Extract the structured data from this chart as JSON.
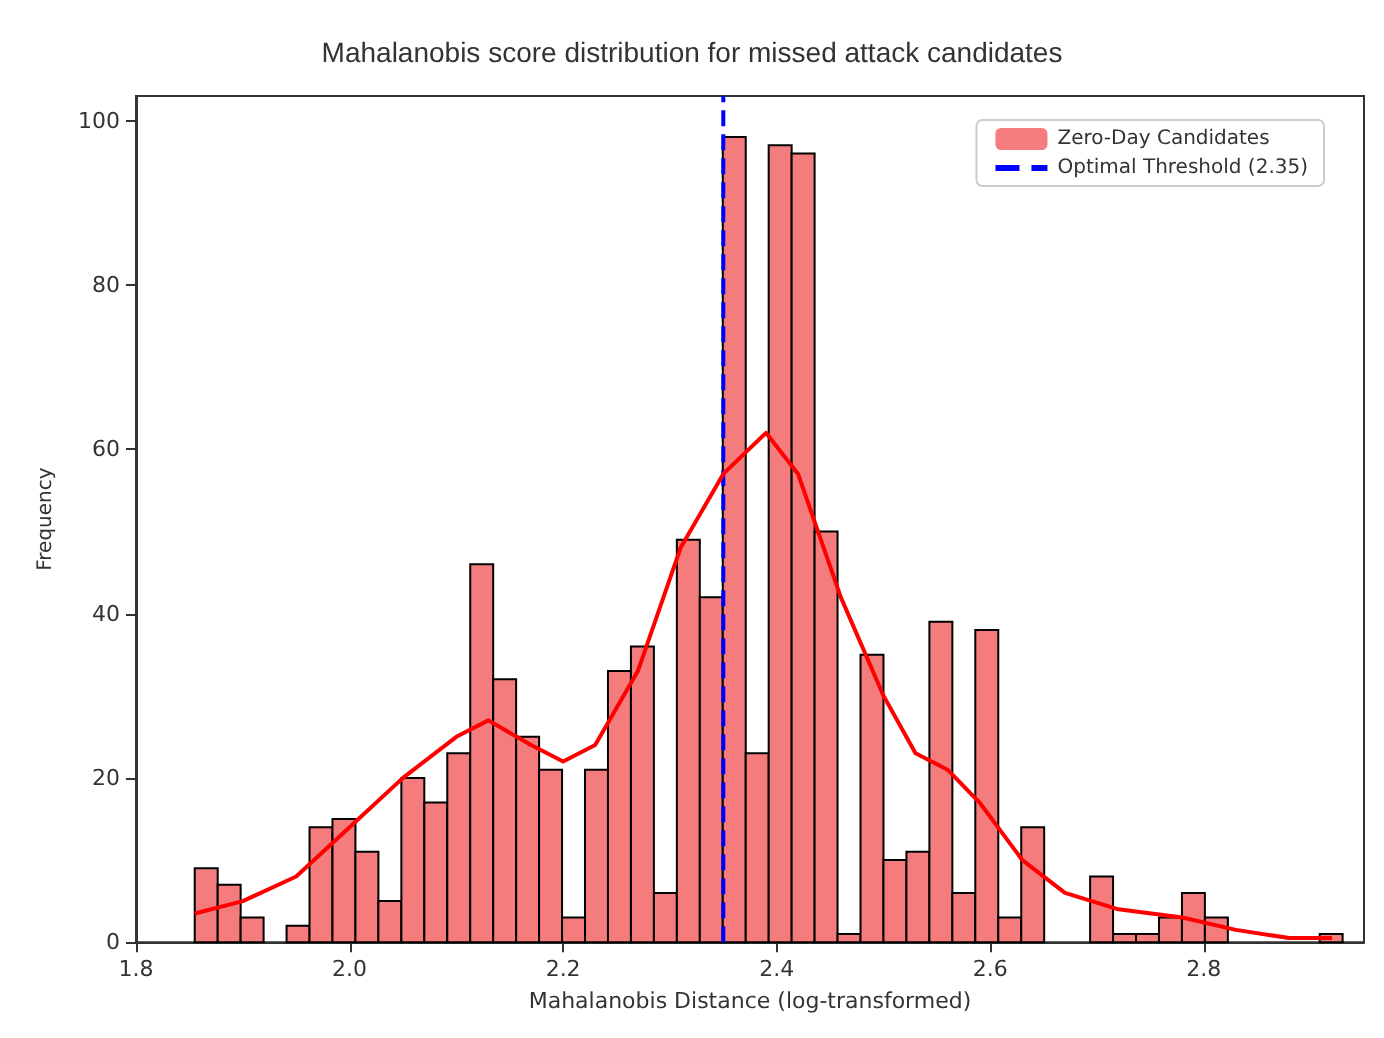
{
  "chart_data": {
    "type": "histogram",
    "title": "Mahalanobis score distribution for missed attack candidates",
    "xlabel": "Mahalanobis Distance (log-transformed)",
    "ylabel": "Frequency",
    "bins": [
      1.855,
      1.8765,
      1.898,
      1.9195,
      1.941,
      1.9625,
      1.984,
      2.0055,
      2.027,
      2.0485,
      2.07,
      2.0915,
      2.113,
      2.1345,
      2.156,
      2.1775,
      2.199,
      2.2205,
      2.242,
      2.2635,
      2.285,
      2.3065,
      2.328,
      2.3495,
      2.371,
      2.3925,
      2.414,
      2.4355,
      2.457,
      2.4785,
      2.5,
      2.5215,
      2.543,
      2.5645,
      2.586,
      2.6075,
      2.629,
      2.6505,
      2.672,
      2.6935,
      2.715,
      2.7365,
      2.758,
      2.7795,
      2.801,
      2.8225,
      2.844,
      2.8655,
      2.887,
      2.9085,
      2.93
    ],
    "series": [
      {
        "name": "Zero-Day Candidates",
        "color": "#f47c7c",
        "values": [
          9,
          7,
          3,
          0,
          2,
          14,
          15,
          11,
          5,
          20,
          17,
          23,
          46,
          32,
          25,
          21,
          3,
          21,
          33,
          36,
          6,
          49,
          42,
          98,
          23,
          97,
          96,
          50,
          1,
          35,
          10,
          11,
          39,
          6,
          38,
          3,
          14,
          0,
          0,
          8,
          1,
          1,
          3,
          6,
          3,
          0,
          0,
          0,
          0,
          1
        ]
      },
      {
        "name": "Optimal Threshold (2.35)",
        "type": "line",
        "color": "#0000ff",
        "line_style": "dashed",
        "x": [
          2.35,
          2.35
        ],
        "values": [
          0,
          103
        ]
      },
      {
        "type": "line",
        "color": "#ff0000",
        "x": [
          1.855,
          1.9,
          1.95,
          2.0,
          2.05,
          2.1,
          2.13,
          2.17,
          2.2,
          2.23,
          2.27,
          2.31,
          2.35,
          2.39,
          2.42,
          2.46,
          2.5,
          2.53,
          2.56,
          2.59,
          2.63,
          2.67,
          2.72,
          2.78,
          2.83,
          2.88,
          2.92
        ],
        "values": [
          3.5,
          5,
          8,
          14,
          20,
          25,
          27,
          24,
          22,
          24,
          33,
          48,
          57,
          62,
          57,
          42,
          30,
          23,
          21,
          17,
          10,
          6,
          4,
          3,
          1.5,
          0.5,
          0.5
        ]
      }
    ],
    "xlim": [
      1.8,
      2.95
    ],
    "xticks": [
      1.8,
      {
        "value": 2,
        "label": "2.0"
      },
      2.2,
      2.4,
      2.6,
      2.8
    ],
    "ylim": [
      0,
      103
    ],
    "yticks": [
      0,
      20,
      40,
      60,
      80,
      100
    ],
    "legend": "top right",
    "grid": false
  }
}
